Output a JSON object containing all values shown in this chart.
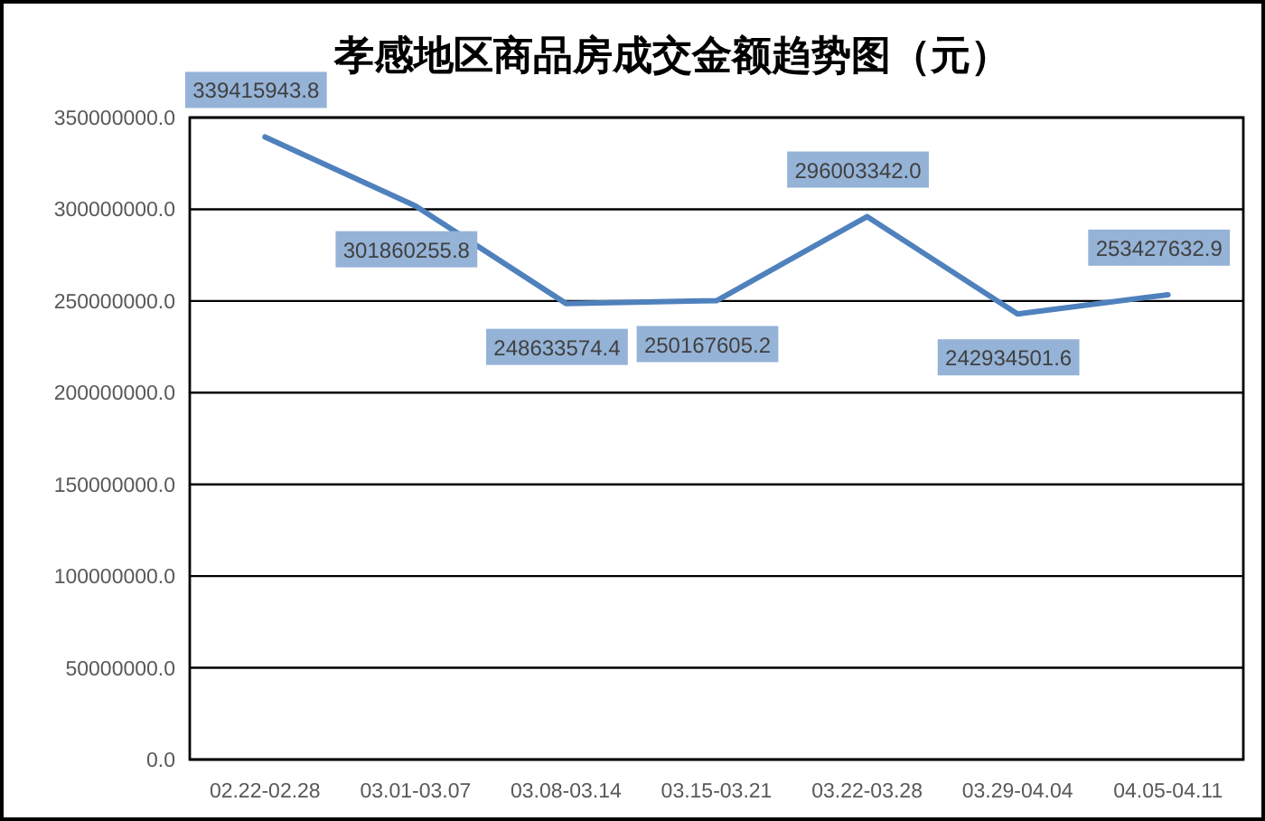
{
  "chart_data": {
    "type": "line",
    "title": "孝感地区商品房成交金额趋势图（元）",
    "categories": [
      "02.22-02.28",
      "03.01-03.07",
      "03.08-03.14",
      "03.15-03.21",
      "03.22-03.28",
      "03.29-04.04",
      "04.05-04.11"
    ],
    "values": [
      339415943.8,
      301860255.8,
      248633574.4,
      250167605.2,
      296003342.0,
      242934501.6,
      253427632.9
    ],
    "value_labels": [
      "339415943.8",
      "301860255.8",
      "248633574.4",
      "250167605.2",
      "296003342.0",
      "242934501.6",
      "253427632.9"
    ],
    "color": "#4f81bd",
    "ylim": [
      0,
      350000000
    ],
    "yticks": [
      {
        "value": 0,
        "label": "0.0"
      },
      {
        "value": 50000000,
        "label": "50000000.0"
      },
      {
        "value": 100000000,
        "label": "100000000.0"
      },
      {
        "value": 150000000,
        "label": "150000000.0"
      },
      {
        "value": 200000000,
        "label": "200000000.0"
      },
      {
        "value": 250000000,
        "label": "250000000.0"
      },
      {
        "value": 300000000,
        "label": "300000000.0"
      },
      {
        "value": 350000000,
        "label": "350000000.0"
      }
    ],
    "grid": "y",
    "marker": "none",
    "line_style": "solid"
  }
}
